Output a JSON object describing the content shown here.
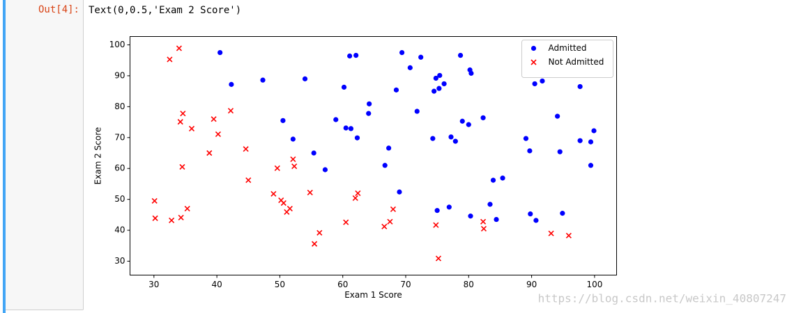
{
  "cell": {
    "prompt": "Out[4]:",
    "output_text": "Text(0,0.5,'Exam 2 Score')"
  },
  "watermark": "https://blog.csdn.net/weixin_40807247",
  "chart_data": {
    "type": "scatter",
    "xlabel": "Exam 1 Score",
    "ylabel": "Exam 2 Score",
    "xlim": [
      26.2,
      103.5
    ],
    "ylim": [
      25.5,
      102.7
    ],
    "xticks": [
      30,
      40,
      50,
      60,
      70,
      80,
      90,
      100
    ],
    "yticks": [
      30,
      40,
      50,
      60,
      70,
      80,
      90,
      100
    ],
    "legend": "upper right",
    "series": [
      {
        "name": "Admitted",
        "color": "#0000ff",
        "marker": "o",
        "x": [
          40.5,
          42.3,
          47.3,
          54.0,
          50.5,
          52.1,
          55.4,
          57.2,
          58.9,
          60.2,
          60.5,
          61.3,
          61.1,
          62.1,
          62.3,
          64.2,
          64.1,
          66.7,
          67.3,
          68.5,
          69.0,
          69.4,
          70.7,
          72.4,
          71.8,
          74.3,
          74.5,
          74.8,
          75.4,
          75.3,
          76.1,
          75.0,
          76.9,
          77.2,
          77.9,
          78.7,
          79.0,
          80.0,
          80.2,
          80.4,
          80.3,
          82.3,
          83.4,
          83.9,
          84.4,
          85.4,
          89.1,
          89.7,
          89.8,
          90.5,
          90.7,
          91.7,
          94.1,
          94.5,
          94.9,
          97.7,
          97.7,
          99.4,
          99.4,
          99.9
        ],
        "values": [
          97.5,
          87.2,
          88.6,
          89.0,
          75.5,
          69.5,
          65.0,
          59.6,
          75.8,
          86.3,
          73.1,
          72.9,
          96.4,
          96.6,
          69.9,
          80.9,
          77.8,
          61.0,
          66.6,
          85.4,
          52.4,
          97.5,
          92.6,
          96.0,
          78.5,
          69.7,
          85.0,
          89.2,
          90.1,
          85.9,
          87.4,
          46.4,
          47.5,
          70.2,
          68.8,
          96.6,
          75.3,
          74.2,
          91.9,
          90.8,
          44.6,
          76.4,
          48.4,
          56.2,
          43.5,
          56.9,
          69.7,
          65.7,
          45.3,
          87.4,
          43.2,
          88.3,
          76.9,
          65.4,
          45.5,
          86.5,
          69.0,
          68.6,
          61.0,
          72.2
        ]
      },
      {
        "name": "Not Admitted",
        "color": "#ff0000",
        "marker": "x",
        "x": [
          32.5,
          34.0,
          30.1,
          30.2,
          32.8,
          34.3,
          35.3,
          34.5,
          34.2,
          34.6,
          36.0,
          38.8,
          39.5,
          40.2,
          42.2,
          44.6,
          45.0,
          49.0,
          49.6,
          50.2,
          50.6,
          51.1,
          51.6,
          52.1,
          52.3,
          54.8,
          55.5,
          56.3,
          60.5,
          62.0,
          62.4,
          66.6,
          67.5,
          68.0,
          74.8,
          75.2,
          82.3,
          82.4,
          93.1,
          95.9
        ],
        "values": [
          95.3,
          98.9,
          49.5,
          43.9,
          43.2,
          44.1,
          47.0,
          60.5,
          75.1,
          77.8,
          72.9,
          65.0,
          76.0,
          71.1,
          78.7,
          66.3,
          56.2,
          51.8,
          60.1,
          49.7,
          48.8,
          45.9,
          47.0,
          63.0,
          60.7,
          52.2,
          35.6,
          39.2,
          42.6,
          50.4,
          52.0,
          41.2,
          42.8,
          46.8,
          41.7,
          30.9,
          42.8,
          40.5,
          39.0,
          38.3
        ]
      }
    ]
  }
}
